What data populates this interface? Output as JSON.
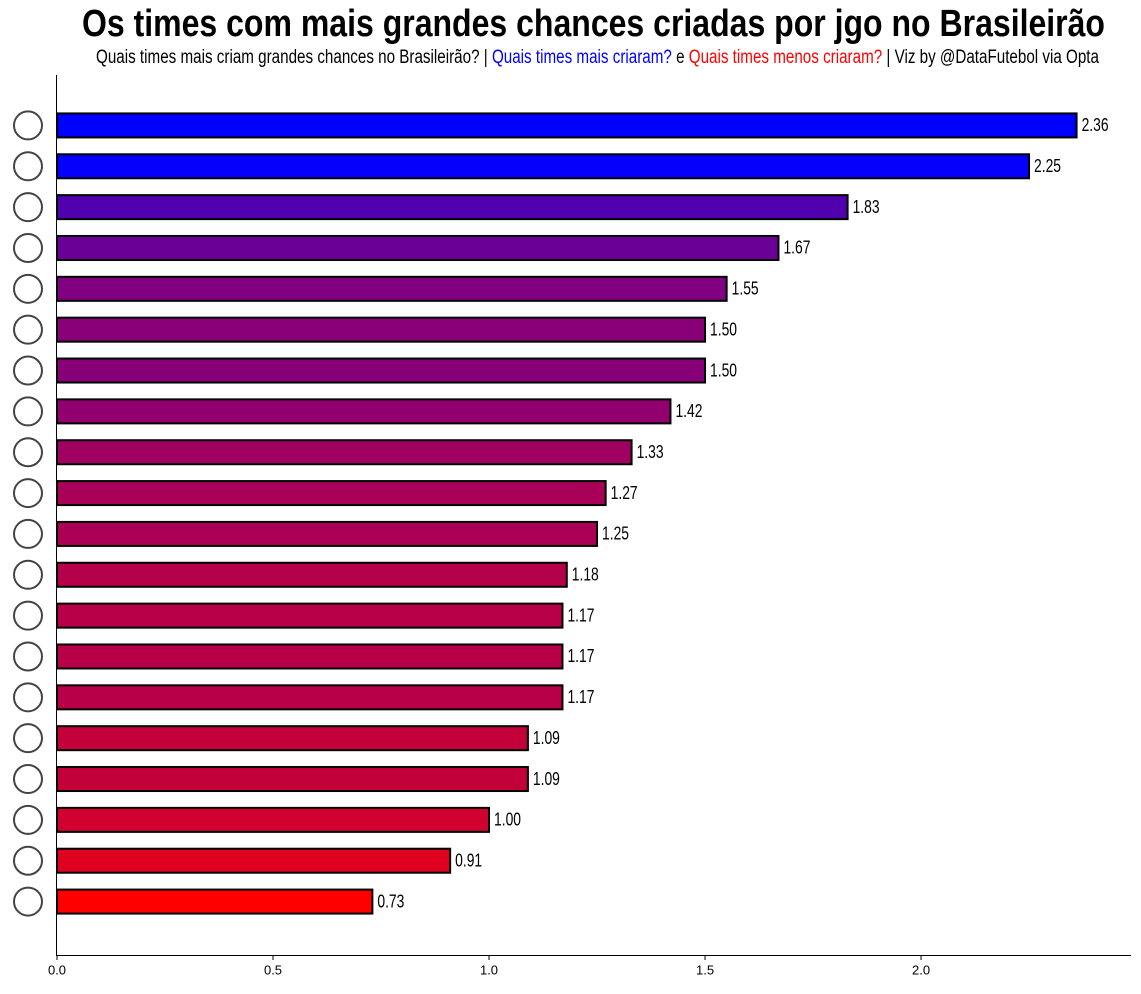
{
  "chart_data": {
    "type": "barh",
    "title": "Os times com mais grandes chances criadas por jgo no Brasileirão",
    "subtitle": [
      {
        "text": "Quais times mais criam grandes chances no Brasileirão? | ",
        "color": "#000000"
      },
      {
        "text": "Quais times mais criaram?",
        "color": "#0000ff"
      },
      {
        "text": " e ",
        "color": "#000000"
      },
      {
        "text": "Quais times menos criaram?",
        "color": "#ff0000"
      },
      {
        "text": " | Viz by @DataFutebol via Opta",
        "color": "#000000"
      }
    ],
    "categories": [
      null,
      null,
      null,
      null,
      null,
      null,
      null,
      null,
      null,
      null,
      null,
      null,
      null,
      null,
      null,
      null,
      null,
      null,
      null,
      null
    ],
    "values": [
      2.36,
      2.25,
      1.83,
      1.67,
      1.55,
      1.5,
      1.5,
      1.42,
      1.33,
      1.27,
      1.25,
      1.18,
      1.17,
      1.17,
      1.17,
      1.09,
      1.09,
      1.0,
      0.91,
      0.73
    ],
    "value_labels": [
      "2.36",
      "2.25",
      "1.83",
      "1.67",
      "1.55",
      "1.50",
      "1.50",
      "1.42",
      "1.33",
      "1.27",
      "1.25",
      "1.18",
      "1.17",
      "1.17",
      "1.17",
      "1.09",
      "1.09",
      "1.00",
      "0.91",
      "0.73"
    ],
    "colors": [
      "#0000ff",
      "#0400fb",
      "#5000af",
      "#6a0095",
      "#7f0080",
      "#870078",
      "#870078",
      "#91006e",
      "#a0005f",
      "#a80057",
      "#ab0054",
      "#b5004a",
      "#b70048",
      "#b70048",
      "#b70048",
      "#c30039",
      "#c30039",
      "#d0002f",
      "#e0001f",
      "#ff0000"
    ],
    "xlim": [
      0,
      2.486
    ],
    "xticks": [
      {
        "value": 0,
        "label": "0.0"
      },
      0.5,
      {
        "value": 1,
        "label": "1.0"
      },
      1.5,
      {
        "value": 2,
        "label": "2.0"
      }
    ]
  }
}
